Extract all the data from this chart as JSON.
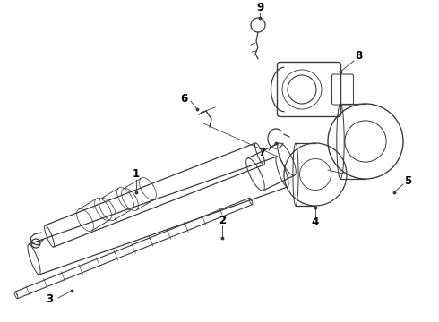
{
  "bg_color": "#ffffff",
  "line_color": "#3a3a3a",
  "label_color": "#000000",
  "figsize": [
    4.9,
    3.6
  ],
  "dpi": 100,
  "lw": 0.9
}
